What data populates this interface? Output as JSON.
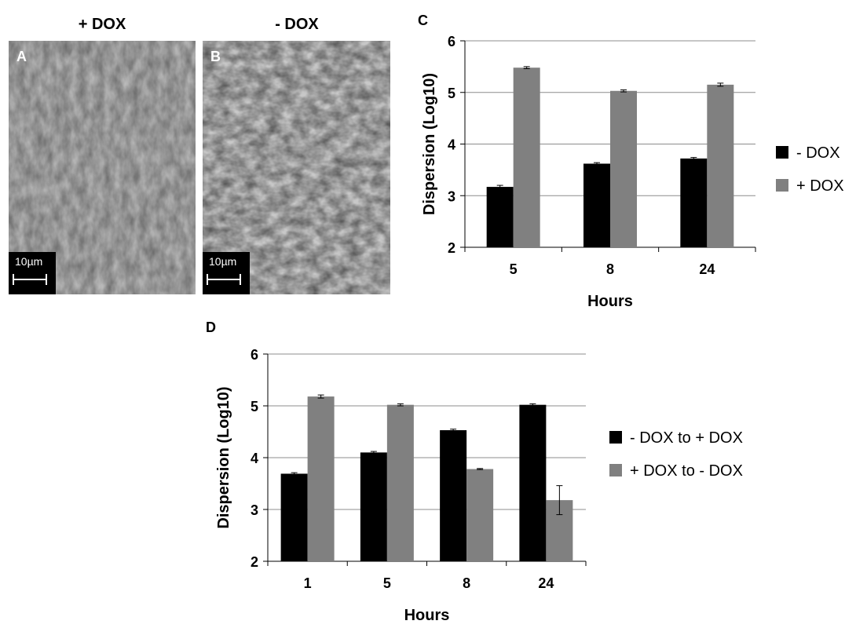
{
  "images": {
    "a": {
      "header": "+ DOX",
      "letter": "A",
      "scale_label": "10µm"
    },
    "b": {
      "header": "- DOX",
      "letter": "B",
      "scale_label": "10µm"
    }
  },
  "colors": {
    "series_dark": "#000000",
    "series_gray": "#808080",
    "grid": "#8c8c8c"
  },
  "chart_data": [
    {
      "panel": "C",
      "type": "bar",
      "categories": [
        "5",
        "8",
        "24"
      ],
      "series": [
        {
          "name": "- DOX",
          "values": [
            3.17,
            3.62,
            3.72
          ],
          "errors": [
            0.03,
            0.02,
            0.02
          ]
        },
        {
          "name": "+ DOX",
          "values": [
            5.48,
            5.03,
            5.15
          ],
          "errors": [
            0.02,
            0.02,
            0.03
          ]
        }
      ],
      "xlabel": "Hours",
      "ylabel": "Dispersion (Log10)",
      "ylim": [
        2,
        6
      ],
      "yticks": [
        "2",
        "3",
        "4",
        "5",
        "6"
      ],
      "grid": true,
      "legend": "right"
    },
    {
      "panel": "D",
      "type": "bar",
      "categories": [
        "1",
        "5",
        "8",
        "24"
      ],
      "series": [
        {
          "name": "- DOX to + DOX",
          "values": [
            3.69,
            4.1,
            4.53,
            5.02
          ],
          "errors": [
            0.02,
            0.02,
            0.02,
            0.02
          ]
        },
        {
          "name": "+ DOX to - DOX",
          "values": [
            5.18,
            5.02,
            3.78,
            3.18
          ],
          "errors": [
            0.03,
            0.02,
            0.01,
            0.28
          ]
        }
      ],
      "xlabel": "Hours",
      "ylabel": "Dispersion (Log10)",
      "ylim": [
        2,
        6
      ],
      "yticks": [
        "2",
        "3",
        "4",
        "5",
        "6"
      ],
      "grid": true,
      "legend": "right"
    }
  ]
}
